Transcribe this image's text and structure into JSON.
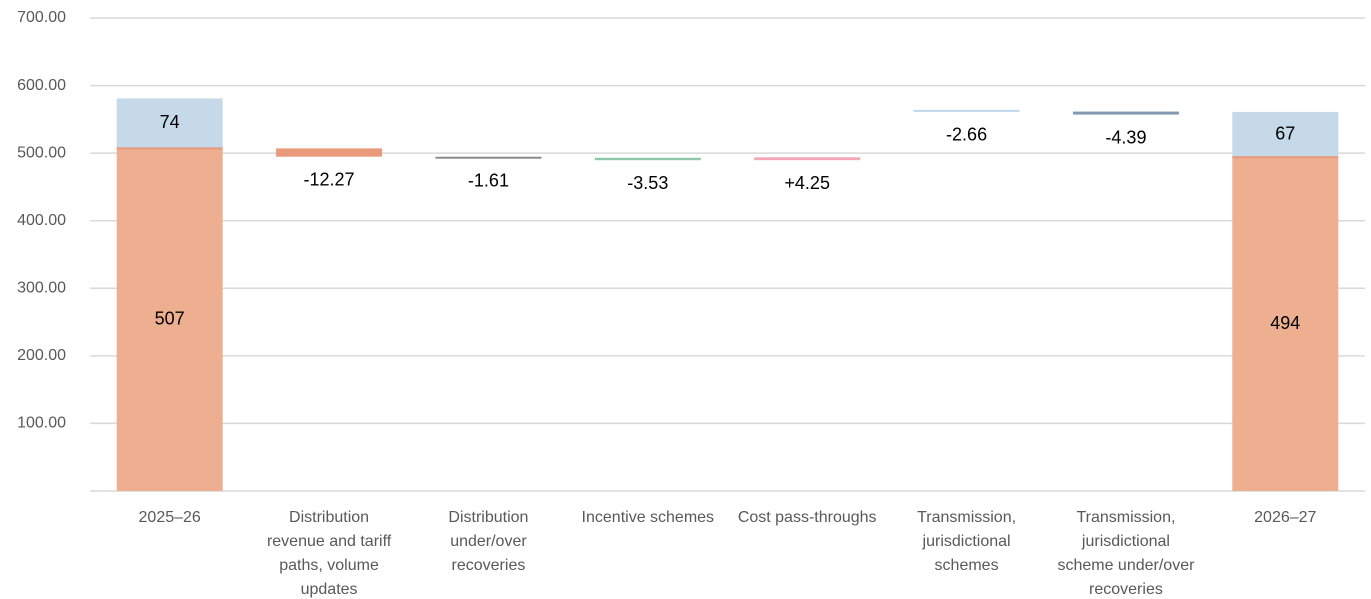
{
  "chart_data": {
    "type": "bar",
    "subtype": "waterfall",
    "title": "",
    "xlabel": "",
    "ylabel": "",
    "ylim": [
      0,
      700
    ],
    "yticks": [
      "100.00",
      "200.00",
      "300.00",
      "400.00",
      "500.00",
      "600.00",
      "700.00"
    ],
    "grid": true,
    "legend": "none",
    "categories": [
      [
        "2025–26"
      ],
      [
        "Distribution",
        "revenue and tariff",
        "paths, volume",
        "updates"
      ],
      [
        "Distribution",
        "under/over",
        "recoveries"
      ],
      [
        "Incentive schemes"
      ],
      [
        "Cost pass-throughs"
      ],
      [
        "Transmission,",
        "jurisdictional",
        "schemes"
      ],
      [
        "Transmission,",
        "jurisdictional",
        "scheme under/over",
        "recoveries"
      ],
      [
        "2026–27"
      ]
    ],
    "totals": [
      {
        "category_index": 0,
        "distribution": 507,
        "transmission": 74,
        "labels": [
          "507",
          "74"
        ]
      },
      {
        "category_index": 7,
        "distribution": 494,
        "transmission": 67,
        "labels": [
          "494",
          "67"
        ]
      }
    ],
    "changes": [
      {
        "category_index": 1,
        "value": -12.27,
        "label": "-12.27",
        "base": 507,
        "color": "#e99a7a"
      },
      {
        "category_index": 2,
        "value": -1.61,
        "label": "-1.61",
        "base": 494.7,
        "color": "#8c8c8c"
      },
      {
        "category_index": 3,
        "value": -3.53,
        "label": "-3.53",
        "base": 493.1,
        "color": "#8fc7a8"
      },
      {
        "category_index": 4,
        "value": 4.25,
        "label": "+4.25",
        "base": 489.6,
        "color": "#f4a7b9"
      },
      {
        "category_index": 5,
        "value": -2.66,
        "label": "-2.66",
        "base": 564,
        "color": "#bdd7ee"
      },
      {
        "category_index": 6,
        "value": -4.39,
        "label": "-4.39",
        "base": 561.5,
        "color": "#8497b0"
      }
    ],
    "colors": {
      "distribution": "#eeae90",
      "transmission": "#c5d9e8",
      "distribution_edge": "#e8997a"
    }
  }
}
